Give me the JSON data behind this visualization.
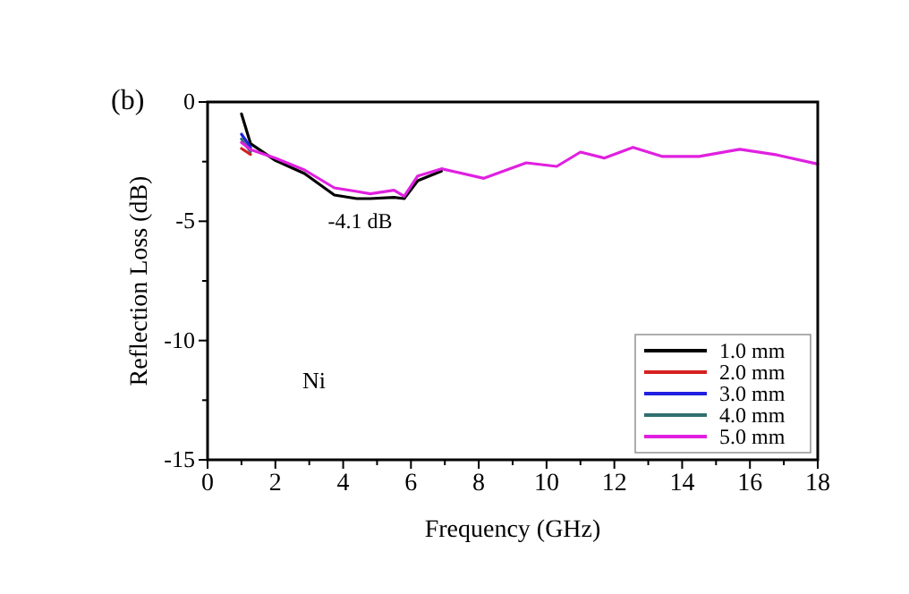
{
  "chart_data": {
    "type": "line",
    "xlabel": "Frequency (GHz)",
    "ylabel": "Reflection Loss (dB)",
    "x": [
      1.0,
      1.27,
      2.0,
      2.86,
      3.74,
      4.4,
      4.8,
      5.5,
      5.8,
      6.2,
      6.9,
      8.15,
      9.4,
      10.3,
      11.0,
      11.7,
      12.55,
      13.4,
      14.5,
      15.7,
      16.8,
      18.0
    ],
    "series": [
      {
        "name": "1.0 mm",
        "color": "#000000",
        "values": [
          -0.5,
          -1.75,
          -2.45,
          -3.0,
          -3.9,
          -4.05,
          -4.05,
          -4.0,
          -4.05,
          -3.3,
          -2.9,
          null,
          null,
          null,
          null,
          null,
          null,
          null,
          null,
          null,
          null,
          null
        ]
      },
      {
        "name": "2.0 mm",
        "color": "#d62020",
        "values": [
          -1.95,
          -2.2,
          null,
          null,
          null,
          null,
          null,
          null,
          null,
          null,
          null,
          null,
          null,
          null,
          null,
          null,
          null,
          null,
          null,
          null,
          null,
          null
        ]
      },
      {
        "name": "3.0 mm",
        "color": "#2020e0",
        "values": [
          -1.35,
          -1.9,
          null,
          null,
          null,
          null,
          null,
          null,
          null,
          null,
          null,
          null,
          null,
          null,
          null,
          null,
          null,
          null,
          null,
          null,
          null,
          null
        ]
      },
      {
        "name": "4.0 mm",
        "color": "#2f6f6f",
        "values": [
          -1.55,
          -2.08,
          null,
          null,
          null,
          null,
          null,
          null,
          null,
          null,
          null,
          null,
          null,
          null,
          null,
          null,
          null,
          null,
          null,
          null,
          null,
          null
        ]
      },
      {
        "name": "5.0 mm",
        "color": "#e020e0",
        "values": [
          -1.7,
          -2.0,
          -2.35,
          -2.85,
          -3.6,
          -3.75,
          -3.85,
          -3.7,
          -3.95,
          -3.1,
          -2.8,
          -3.2,
          -2.55,
          -2.7,
          -2.1,
          -2.35,
          -1.9,
          -2.28,
          -2.28,
          -1.98,
          -2.22,
          -2.6
        ]
      }
    ],
    "xlim": [
      0,
      18
    ],
    "xticks": [
      0,
      {
        "value": 1,
        "label": null
      },
      2,
      {
        "value": 3,
        "label": null
      },
      4,
      {
        "value": 5,
        "label": null
      },
      6,
      {
        "value": 7,
        "label": null
      },
      8,
      {
        "value": 9,
        "label": null
      },
      10,
      {
        "value": 11,
        "label": null
      },
      12,
      {
        "value": 13,
        "label": null
      },
      14,
      {
        "value": 15,
        "label": null
      },
      16,
      {
        "value": 17,
        "label": null
      },
      18
    ],
    "ylim": [
      -15,
      0
    ],
    "yticks": [
      -15,
      {
        "value": -12.5,
        "label": null
      },
      -10,
      {
        "value": -7.5,
        "label": null
      },
      -5,
      {
        "value": -2.5,
        "label": null
      },
      0
    ],
    "annotations": [
      "(b)",
      {
        "text": "-4.1 dB",
        "x": 4.5,
        "y": -4.1
      },
      "Ni"
    ],
    "legend": "bottom right",
    "line_style": "solid",
    "grid": false
  }
}
